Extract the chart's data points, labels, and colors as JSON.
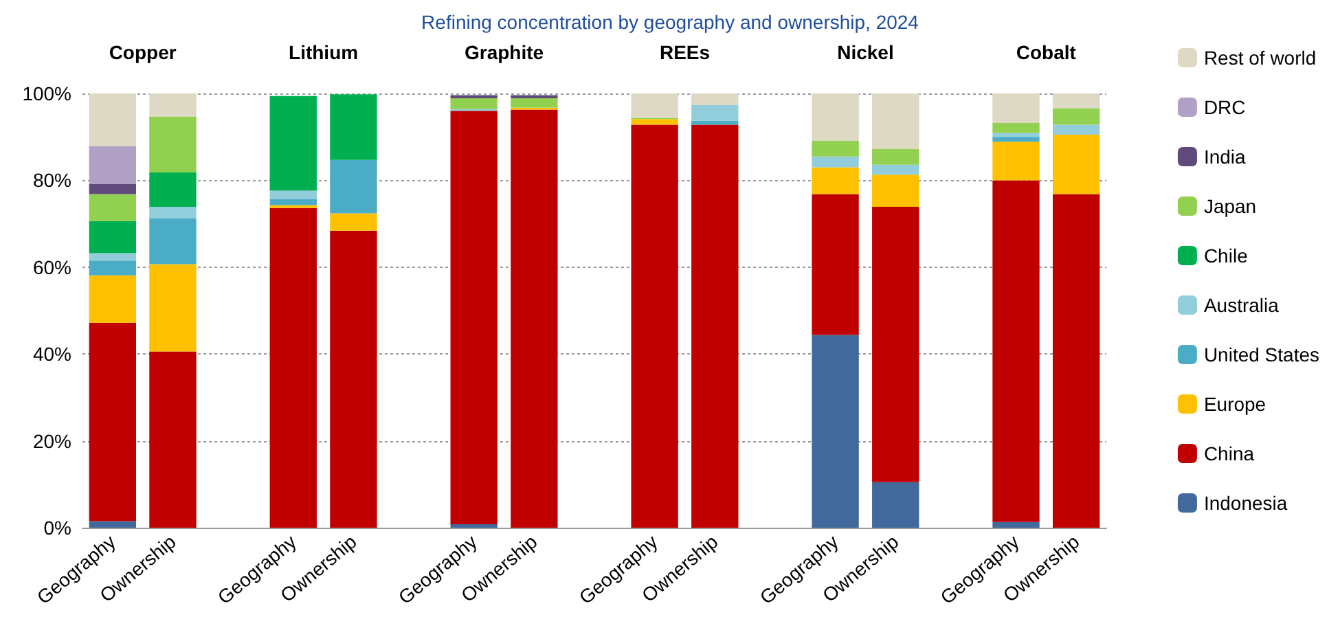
{
  "chart_data": {
    "type": "bar",
    "stacked": true,
    "title": "Refining concentration by geography and ownership, 2024",
    "categories": [
      "Geography",
      "Ownership",
      null,
      "Geography",
      "Ownership",
      null,
      "Geography",
      "Ownership",
      null,
      "Geography",
      "Ownership",
      null,
      "Geography",
      "Ownership",
      null,
      "Geography",
      "Ownership"
    ],
    "annotations": [
      "Copper",
      "Lithium",
      "Graphite",
      "REEs",
      "Nickel",
      "Cobalt"
    ],
    "series": [
      {
        "name": "Indonesia",
        "color": "#41699b",
        "values": [
          1.5,
          null,
          null,
          null,
          null,
          null,
          0.8,
          null,
          null,
          null,
          null,
          null,
          44.4,
          10.5,
          null,
          1.3,
          null
        ]
      },
      {
        "name": "China",
        "color": "#c00000",
        "values": [
          45.7,
          40.6,
          null,
          73.6,
          68.4,
          null,
          95.2,
          96.3,
          null,
          92.8,
          92.8,
          null,
          32.4,
          63.4,
          null,
          78.7,
          76.8
        ]
      },
      {
        "name": "Europe",
        "color": "#ffc000",
        "values": [
          10.9,
          20.1,
          null,
          0.7,
          4.0,
          null,
          null,
          0.4,
          null,
          1.3,
          null,
          null,
          6.2,
          7.4,
          null,
          8.9,
          13.7
        ]
      },
      {
        "name": "United States",
        "color": "#4bacc6",
        "values": [
          3.4,
          10.5,
          null,
          1.4,
          12.3,
          null,
          null,
          null,
          null,
          null,
          0.9,
          null,
          null,
          null,
          null,
          1.1,
          null
        ]
      },
      {
        "name": "Australia",
        "color": "#92cddc",
        "values": [
          1.7,
          2.7,
          null,
          1.9,
          null,
          null,
          0.4,
          null,
          null,
          null,
          3.6,
          null,
          2.5,
          2.3,
          null,
          0.9,
          2.3
        ]
      },
      {
        "name": "Chile",
        "color": "#00b050",
        "values": [
          7.4,
          7.9,
          null,
          21.8,
          15.1,
          null,
          null,
          null,
          null,
          null,
          null,
          null,
          null,
          null,
          null,
          null,
          null
        ]
      },
      {
        "name": "Japan",
        "color": "#92d050",
        "values": [
          6.2,
          12.9,
          null,
          null,
          null,
          null,
          2.5,
          2.2,
          null,
          0.3,
          null,
          null,
          3.6,
          3.6,
          null,
          2.3,
          3.8
        ]
      },
      {
        "name": "India",
        "color": "#604a7b",
        "values": [
          2.4,
          null,
          null,
          null,
          null,
          null,
          0.7,
          0.7,
          null,
          null,
          null,
          null,
          null,
          null,
          null,
          null,
          null
        ]
      },
      {
        "name": "DRC",
        "color": "#b2a1c7",
        "values": [
          8.6,
          null,
          null,
          null,
          null,
          null,
          null,
          null,
          null,
          null,
          null,
          null,
          null,
          null,
          null,
          null,
          null
        ]
      },
      {
        "name": "Rest of world",
        "color": "#ddd9c4",
        "values": [
          12.2,
          5.3,
          null,
          null,
          null,
          null,
          null,
          null,
          null,
          5.6,
          2.7,
          null,
          10.9,
          12.8,
          null,
          6.8,
          3.4
        ]
      }
    ],
    "ylim": [
      0,
      100
    ],
    "yticks": [
      {
        "value": 0,
        "label": "0%"
      },
      {
        "value": 20,
        "label": "20%"
      },
      {
        "value": 40,
        "label": "40%"
      },
      {
        "value": 60,
        "label": "60%"
      },
      {
        "value": 80,
        "label": "80%"
      },
      {
        "value": 100,
        "label": "100%"
      }
    ],
    "grid": "y",
    "legend": "right"
  }
}
